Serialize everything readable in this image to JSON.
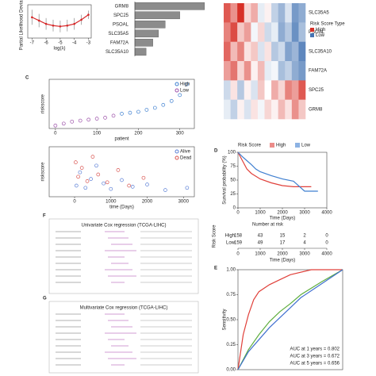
{
  "chart_data": [
    {
      "type": "line",
      "x_label": "log(λ)",
      "y_label": "Partial Likelihood Deviance",
      "x": [
        -7,
        -6.5,
        -6,
        -5.5,
        -5,
        -4.5,
        -4,
        -3.5,
        -3
      ],
      "values": [
        13.0,
        12.6,
        12.2,
        12.0,
        11.9,
        12.0,
        12.2,
        12.7,
        13.3
      ],
      "errors": [
        0.9,
        0.8,
        0.7,
        0.7,
        0.7,
        0.7,
        0.7,
        0.6,
        0.5
      ],
      "color": "#d62728",
      "xlim": [
        -7.3,
        -2.8
      ],
      "ylim": [
        10.5,
        14.5
      ],
      "xticks": [
        -7,
        -6,
        -5,
        -4,
        -3
      ]
    },
    {
      "type": "bar",
      "orientation": "horizontal",
      "categories": [
        "GRM8",
        "SPC25",
        "PSOAL",
        "SLC35A5",
        "FAM72A",
        "SLC35A10"
      ],
      "values": [
        0.62,
        0.4,
        0.27,
        0.21,
        0.16,
        0.1
      ],
      "color": "#8c8c8c",
      "xlim": [
        0,
        0.65
      ]
    },
    {
      "type": "heatmap",
      "categories": [
        "SLC35A5",
        "PSOAL",
        "SLC35A10",
        "FAM72A",
        "SPC25",
        "GRM8"
      ],
      "matrix": [
        [
          1.2,
          0.8,
          1.5,
          0.3,
          0.6,
          -0.2,
          0.1,
          -0.5,
          -0.8,
          -0.3,
          -1.1,
          -0.9
        ],
        [
          0.9,
          1.3,
          0.4,
          0.7,
          -0.1,
          0.3,
          -0.4,
          -0.2,
          -0.9,
          -0.6,
          -1.2,
          -0.7
        ],
        [
          1.1,
          0.5,
          0.9,
          0.2,
          0.4,
          -0.3,
          0.2,
          -0.6,
          -0.4,
          -1.0,
          -0.8,
          -1.3
        ],
        [
          0.7,
          1.0,
          0.3,
          0.8,
          0.1,
          0.5,
          -0.2,
          -0.1,
          -0.7,
          -0.5,
          -0.9,
          -1.1
        ],
        [
          -0.4,
          0.2,
          -0.6,
          0.1,
          -0.3,
          0.4,
          0.0,
          0.6,
          0.3,
          0.9,
          0.7,
          1.2
        ],
        [
          -0.2,
          -0.5,
          0.1,
          -0.3,
          0.2,
          -0.1,
          0.3,
          0.1,
          0.5,
          0.2,
          0.8,
          0.4
        ]
      ],
      "clim": [
        -1.5,
        1.5
      ],
      "legend_title": "Risk Score Type",
      "groups": [
        {
          "name": "High",
          "color": "#d73027"
        },
        {
          "name": "Low",
          "color": "#4575b4"
        }
      ]
    },
    {
      "type": "scatter",
      "panel": "C",
      "x_label": "patient",
      "y_label": "riskscore",
      "legend": "top-right",
      "series": [
        {
          "name": "High",
          "color": "#3d7fd0",
          "x": [
            160,
            180,
            200,
            220,
            240,
            260,
            280,
            300,
            317
          ],
          "values": [
            1.5,
            1.6,
            1.7,
            1.9,
            2.1,
            2.4,
            2.8,
            3.4,
            4.5
          ]
        },
        {
          "name": "Low",
          "color": "#9b4fa8",
          "x": [
            0,
            20,
            40,
            60,
            80,
            100,
            120,
            140
          ],
          "values": [
            0.3,
            0.5,
            0.7,
            0.8,
            0.9,
            1.0,
            1.1,
            1.3
          ]
        }
      ],
      "xlim": [
        -15,
        335
      ],
      "ylim": [
        0,
        5
      ],
      "xticks": [
        0,
        100,
        200,
        300
      ]
    },
    {
      "type": "scatter",
      "x_label": "time (Days)",
      "y_label": "riskscore",
      "legend": "top-right",
      "series": [
        {
          "name": "Alive",
          "color": "#5b7fd6",
          "x": [
            50,
            150,
            300,
            450,
            600,
            800,
            1000,
            1300,
            1600,
            2000,
            2500,
            3100
          ],
          "values": [
            1.0,
            2.2,
            0.8,
            1.6,
            2.8,
            1.2,
            0.7,
            1.5,
            0.9,
            1.1,
            0.6,
            0.8
          ]
        },
        {
          "name": "Dead",
          "color": "#d9534f",
          "x": [
            30,
            100,
            200,
            350,
            500,
            650,
            900,
            1200,
            1500,
            1900
          ],
          "values": [
            3.1,
            1.8,
            2.6,
            1.4,
            3.6,
            2.0,
            1.3,
            2.4,
            1.0,
            1.7
          ]
        }
      ],
      "xlim": [
        -700,
        3300
      ],
      "ylim": [
        0,
        4.5
      ],
      "xticks": [
        0,
        1000,
        2000,
        3000
      ]
    },
    {
      "type": "line",
      "panel": "D",
      "x_label": "Time (Days)",
      "y_label": "Survival probability (%)",
      "legend": "top",
      "legend_title": "Risk Score",
      "series": [
        {
          "name": "High",
          "color": "#e0403a",
          "x": [
            0,
            200,
            400,
            600,
            800,
            1000,
            1500,
            2000,
            2500,
            3000,
            3300
          ],
          "values": [
            100,
            85,
            70,
            62,
            57,
            52,
            45,
            40,
            38,
            38,
            38
          ]
        },
        {
          "name": "Low",
          "color": "#3f7fd0",
          "x": [
            0,
            200,
            400,
            600,
            800,
            1000,
            1500,
            2000,
            2500,
            3000,
            3600
          ],
          "values": [
            100,
            92,
            85,
            78,
            70,
            65,
            58,
            52,
            48,
            30,
            30
          ]
        }
      ],
      "xlim": [
        0,
        4000
      ],
      "ylim": [
        0,
        100
      ],
      "xticks": [
        0,
        1000,
        2000,
        3000,
        4000
      ],
      "yticks": [
        0,
        25,
        50,
        75,
        100
      ],
      "risk_table": {
        "title": "Number at risk",
        "label": "Risk Score",
        "x_label": "Time (Days)",
        "xticks": [
          0,
          1000,
          2000,
          3000,
          4000
        ],
        "rows": [
          {
            "name": "High",
            "color": "#e0403a",
            "values": [
              158,
              43,
              15,
              2,
              0
            ]
          },
          {
            "name": "Low",
            "color": "#3f7fd0",
            "values": [
              159,
              49,
              17,
              4,
              0
            ]
          }
        ]
      }
    },
    {
      "type": "table",
      "panel": "F",
      "title": "Univariate Cox regression (TCGA-LIHC)"
    },
    {
      "type": "line",
      "panel": "E",
      "y_label": "Sensitivity",
      "legend": "bottom-right",
      "series": [
        {
          "name": "AUC at 1 years = 0.802",
          "color": "#e0403a",
          "x": [
            0,
            0.05,
            0.1,
            0.15,
            0.2,
            0.3,
            0.4,
            0.5,
            0.7,
            1
          ],
          "values": [
            0,
            0.35,
            0.55,
            0.7,
            0.78,
            0.85,
            0.9,
            0.95,
            1,
            1
          ]
        },
        {
          "name": "AUC at 3 years = 0.672",
          "color": "#5fae3e",
          "x": [
            0,
            0.1,
            0.2,
            0.3,
            0.4,
            0.5,
            0.6,
            0.8,
            1
          ],
          "values": [
            0,
            0.2,
            0.35,
            0.48,
            0.58,
            0.66,
            0.75,
            0.88,
            1
          ]
        },
        {
          "name": "AUC at 5 years = 0.656",
          "color": "#3f6fcf",
          "x": [
            0,
            0.1,
            0.2,
            0.3,
            0.4,
            0.5,
            0.6,
            0.8,
            1
          ],
          "values": [
            0,
            0.18,
            0.3,
            0.42,
            0.52,
            0.62,
            0.72,
            0.86,
            1
          ]
        }
      ],
      "xlim": [
        0,
        1
      ],
      "ylim": [
        0,
        1
      ],
      "yticks": [
        {
          "value": 0,
          "label": "0.00"
        },
        {
          "value": 0.25,
          "label": "0.25"
        },
        {
          "value": 0.5,
          "label": "0.50"
        },
        {
          "value": 0.75,
          "label": "0.75"
        },
        {
          "value": 1,
          "label": "1.00"
        }
      ]
    },
    {
      "type": "table",
      "panel": "G",
      "title": "Multivariate Cox regression (TCGA-LIHC)"
    }
  ]
}
